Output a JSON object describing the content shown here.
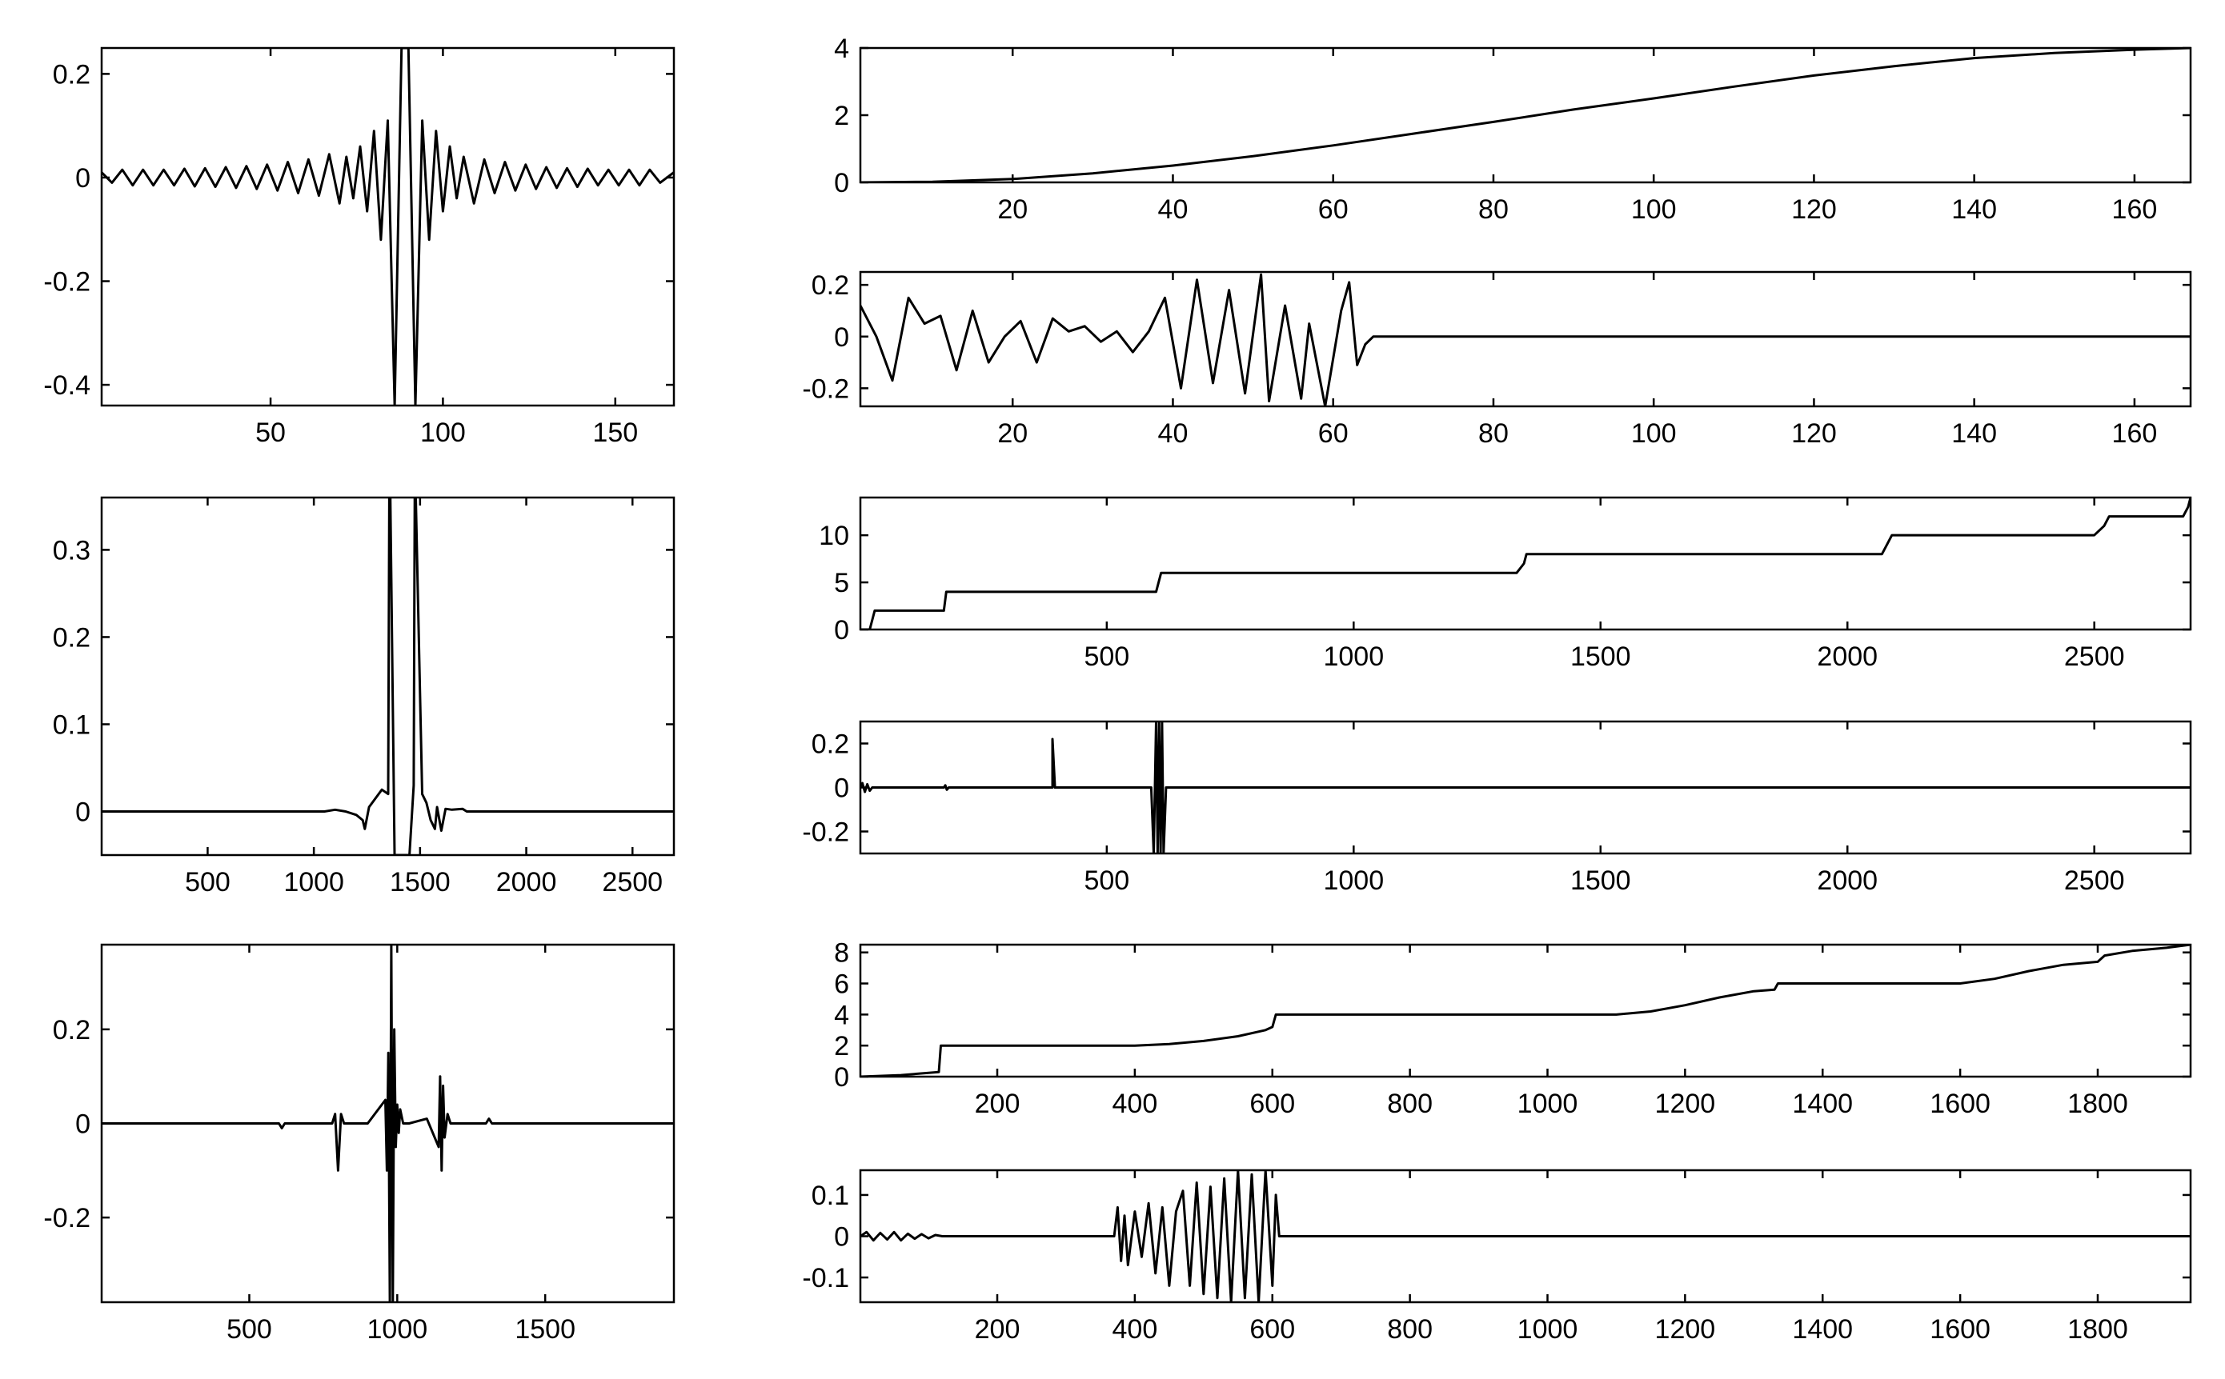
{
  "figure": {
    "background": "#ffffff",
    "line_color": "#000000",
    "panel_count": 9
  },
  "chart_data": [
    {
      "id": "left-1",
      "type": "line",
      "xlim": [
        1,
        167
      ],
      "ylim": [
        -0.44,
        0.25
      ],
      "xticks": [
        50,
        100,
        150
      ],
      "xtick_labels": [
        "50",
        "100",
        "150"
      ],
      "yticks": [
        0.2,
        0,
        -0.2,
        -0.4
      ],
      "ytick_labels": [
        "0.2",
        "0",
        "-0.2",
        "-0.4"
      ],
      "series": [
        {
          "x": [
            1,
            4,
            7,
            10,
            13,
            16,
            19,
            22,
            25,
            28,
            31,
            34,
            37,
            40,
            43,
            46,
            49,
            52,
            55,
            58,
            61,
            64,
            67,
            70,
            72,
            74,
            76,
            78,
            80,
            82,
            84,
            86,
            88,
            90,
            92,
            94,
            96,
            98,
            100,
            102,
            104,
            106,
            109,
            112,
            115,
            118,
            121,
            124,
            127,
            130,
            133,
            136,
            139,
            142,
            145,
            148,
            151,
            154,
            157,
            160,
            163,
            167
          ],
          "y": [
            0.01,
            -0.01,
            0.015,
            -0.015,
            0.015,
            -0.015,
            0.015,
            -0.015,
            0.017,
            -0.017,
            0.018,
            -0.018,
            0.02,
            -0.02,
            0.022,
            -0.022,
            0.025,
            -0.025,
            0.03,
            -0.03,
            0.035,
            -0.035,
            0.045,
            -0.05,
            0.04,
            -0.04,
            0.06,
            -0.065,
            0.09,
            -0.12,
            0.11,
            -0.44,
            0.25,
            0.25,
            -0.44,
            0.11,
            -0.12,
            0.09,
            -0.065,
            0.06,
            -0.04,
            0.04,
            -0.05,
            0.035,
            -0.03,
            0.03,
            -0.025,
            0.025,
            -0.022,
            0.02,
            -0.02,
            0.018,
            -0.018,
            0.017,
            -0.015,
            0.015,
            -0.015,
            0.015,
            -0.015,
            0.015,
            -0.01,
            0.01
          ]
        }
      ]
    },
    {
      "id": "right-1",
      "type": "line",
      "xlim": [
        1,
        167
      ],
      "ylim": [
        0,
        4
      ],
      "xticks": [
        20,
        40,
        60,
        80,
        100,
        120,
        140,
        160
      ],
      "xtick_labels": [
        "20",
        "40",
        "60",
        "80",
        "100",
        "120",
        "140",
        "160"
      ],
      "yticks": [
        4,
        2,
        0
      ],
      "ytick_labels": [
        "4",
        "2",
        "0"
      ],
      "series": [
        {
          "x": [
            1,
            10,
            20,
            30,
            40,
            50,
            60,
            70,
            80,
            90,
            100,
            110,
            120,
            130,
            140,
            150,
            160,
            167
          ],
          "y": [
            0,
            0.02,
            0.1,
            0.27,
            0.5,
            0.78,
            1.1,
            1.45,
            1.8,
            2.17,
            2.5,
            2.85,
            3.18,
            3.46,
            3.7,
            3.85,
            3.95,
            4.0
          ]
        }
      ]
    },
    {
      "id": "right-2",
      "type": "line",
      "xlim": [
        1,
        167
      ],
      "ylim": [
        -0.27,
        0.25
      ],
      "xticks": [
        20,
        40,
        60,
        80,
        100,
        120,
        140,
        160
      ],
      "xtick_labels": [
        "20",
        "40",
        "60",
        "80",
        "100",
        "120",
        "140",
        "160"
      ],
      "yticks": [
        0.2,
        0,
        -0.2
      ],
      "ytick_labels": [
        "0.2",
        "0",
        "-0.2"
      ],
      "series": [
        {
          "x": [
            1,
            3,
            5,
            7,
            9,
            11,
            13,
            15,
            17,
            19,
            21,
            23,
            25,
            27,
            29,
            31,
            33,
            35,
            37,
            39,
            41,
            43,
            45,
            47,
            49,
            51,
            52,
            54,
            56,
            57,
            59,
            61,
            62,
            63,
            64,
            65,
            80,
            100,
            120,
            140,
            160,
            167
          ],
          "y": [
            0.12,
            0.0,
            -0.17,
            0.15,
            0.05,
            0.08,
            -0.13,
            0.1,
            -0.1,
            0.0,
            0.06,
            -0.1,
            0.07,
            0.02,
            0.04,
            -0.02,
            0.02,
            -0.06,
            0.02,
            0.15,
            -0.2,
            0.22,
            -0.18,
            0.18,
            -0.22,
            0.24,
            -0.25,
            0.12,
            -0.24,
            0.05,
            -0.27,
            0.1,
            0.21,
            -0.11,
            -0.03,
            0,
            0,
            0,
            0,
            0,
            0,
            0
          ]
        }
      ]
    },
    {
      "id": "left-2",
      "type": "line",
      "xlim": [
        1,
        2695
      ],
      "ylim": [
        -0.05,
        0.36
      ],
      "xticks": [
        500,
        1000,
        1500,
        2000,
        2500
      ],
      "xtick_labels": [
        "500",
        "1000",
        "1500",
        "2000",
        "2500"
      ],
      "yticks": [
        0.3,
        0.2,
        0.1,
        0
      ],
      "ytick_labels": [
        "0.3",
        "0.2",
        "0.1",
        "0"
      ],
      "series": [
        {
          "x": [
            1,
            1050,
            1100,
            1150,
            1200,
            1230,
            1240,
            1260,
            1290,
            1320,
            1350,
            1355,
            1360,
            1380,
            1400,
            1450,
            1470,
            1475,
            1480,
            1510,
            1530,
            1550,
            1570,
            1580,
            1600,
            1620,
            1650,
            1700,
            1720,
            1800,
            2695
          ],
          "y": [
            0,
            0,
            0.002,
            0,
            -0.004,
            -0.01,
            -0.02,
            0.005,
            0.015,
            0.025,
            0.02,
            0.36,
            0.36,
            -0.05,
            -0.05,
            -0.05,
            0.03,
            0.36,
            0.36,
            0.02,
            0.01,
            -0.01,
            -0.02,
            0.005,
            -0.022,
            0.003,
            0.002,
            0.003,
            0,
            0,
            0
          ]
        }
      ]
    },
    {
      "id": "right-3",
      "type": "line",
      "xlim": [
        1,
        2695
      ],
      "ylim": [
        0,
        14
      ],
      "xticks": [
        500,
        1000,
        1500,
        2000,
        2500
      ],
      "xtick_labels": [
        "500",
        "1000",
        "1500",
        "2000",
        "2500"
      ],
      "yticks": [
        10,
        5,
        0
      ],
      "ytick_labels": [
        "10",
        "5",
        "0"
      ],
      "series": [
        {
          "x": [
            1,
            10,
            20,
            30,
            170,
            175,
            600,
            610,
            1330,
            1345,
            1350,
            2070,
            2080,
            2090,
            2500,
            2520,
            2530,
            2680,
            2690,
            2695
          ],
          "y": [
            0,
            0,
            0,
            2,
            2,
            4,
            4,
            6,
            6,
            7,
            8,
            8,
            9,
            10,
            10,
            11,
            12,
            12,
            13,
            14
          ]
        }
      ]
    },
    {
      "id": "right-4",
      "type": "line",
      "xlim": [
        1,
        2695
      ],
      "ylim": [
        -0.3,
        0.3
      ],
      "xticks": [
        500,
        1000,
        1500,
        2000,
        2500
      ],
      "xtick_labels": [
        "500",
        "1000",
        "1500",
        "2000",
        "2500"
      ],
      "yticks": [
        0.2,
        0,
        -0.2
      ],
      "ytick_labels": [
        "0.2",
        "0",
        "-0.2"
      ],
      "series": [
        {
          "x": [
            1,
            5,
            10,
            15,
            20,
            25,
            170,
            173,
            176,
            180,
            380,
            390,
            390,
            395,
            590,
            595,
            600,
            603,
            606,
            609,
            612,
            615,
            620,
            2695
          ],
          "y": [
            0,
            0.02,
            -0.02,
            0.015,
            -0.015,
            0,
            0,
            0.01,
            -0.01,
            0,
            0,
            0,
            0.22,
            0,
            0,
            -0.3,
            0.3,
            -0.3,
            0.3,
            -0.3,
            0.3,
            -0.3,
            0,
            0
          ]
        }
      ]
    },
    {
      "id": "left-3",
      "type": "line",
      "xlim": [
        1,
        1935
      ],
      "ylim": [
        -0.38,
        0.38
      ],
      "xticks": [
        500,
        1000,
        1500
      ],
      "xtick_labels": [
        "500",
        "1000",
        "1500"
      ],
      "yticks": [
        0.2,
        0,
        -0.2
      ],
      "ytick_labels": [
        "0.2",
        "0",
        "-0.2"
      ],
      "series": [
        {
          "x": [
            1,
            600,
            610,
            620,
            780,
            790,
            800,
            810,
            820,
            900,
            960,
            965,
            970,
            975,
            980,
            985,
            990,
            995,
            1000,
            1005,
            1010,
            1020,
            1040,
            1100,
            1140,
            1145,
            1150,
            1155,
            1160,
            1170,
            1180,
            1300,
            1310,
            1320,
            1935
          ],
          "y": [
            0,
            0,
            -0.01,
            0,
            0,
            0.02,
            -0.1,
            0.02,
            0,
            0,
            0.05,
            -0.1,
            0.15,
            -0.38,
            0.38,
            -0.38,
            0.2,
            -0.05,
            0.04,
            -0.02,
            0.03,
            0,
            0,
            0.01,
            -0.05,
            0.1,
            -0.1,
            0.08,
            -0.03,
            0.02,
            0,
            0,
            0.01,
            0,
            0
          ]
        }
      ]
    },
    {
      "id": "right-5",
      "type": "line",
      "xlim": [
        1,
        1935
      ],
      "ylim": [
        0,
        8.5
      ],
      "xticks": [
        200,
        400,
        600,
        800,
        1000,
        1200,
        1400,
        1600,
        1800
      ],
      "xtick_labels": [
        "200",
        "400",
        "600",
        "800",
        "1000",
        "1200",
        "1400",
        "1600",
        "1800"
      ],
      "yticks": [
        8,
        6,
        4,
        2,
        0
      ],
      "ytick_labels": [
        "8",
        "6",
        "4",
        "2",
        "0"
      ],
      "series": [
        {
          "x": [
            1,
            60,
            115,
            118,
            400,
            450,
            500,
            550,
            590,
            600,
            605,
            1100,
            1150,
            1200,
            1250,
            1300,
            1330,
            1335,
            1600,
            1650,
            1700,
            1750,
            1800,
            1810,
            1850,
            1900,
            1935
          ],
          "y": [
            0,
            0.1,
            0.3,
            2,
            2,
            2.1,
            2.3,
            2.6,
            3,
            3.2,
            4,
            4,
            4.2,
            4.6,
            5.1,
            5.5,
            5.6,
            6,
            6,
            6.3,
            6.8,
            7.2,
            7.4,
            7.8,
            8.1,
            8.3,
            8.5
          ]
        }
      ]
    },
    {
      "id": "right-6",
      "type": "line",
      "xlim": [
        1,
        1935
      ],
      "ylim": [
        -0.16,
        0.16
      ],
      "xticks": [
        200,
        400,
        600,
        800,
        1000,
        1200,
        1400,
        1600,
        1800
      ],
      "xtick_labels": [
        "200",
        "400",
        "600",
        "800",
        "1000",
        "1200",
        "1400",
        "1600",
        "1800"
      ],
      "yticks": [
        0.1,
        0,
        -0.1
      ],
      "ytick_labels": [
        "0.1",
        "0",
        "-0.1"
      ],
      "series": [
        {
          "x": [
            1,
            10,
            20,
            30,
            40,
            50,
            60,
            70,
            80,
            90,
            100,
            110,
            120,
            370,
            375,
            380,
            385,
            390,
            400,
            410,
            420,
            430,
            440,
            450,
            460,
            470,
            480,
            490,
            500,
            510,
            520,
            530,
            540,
            550,
            560,
            570,
            580,
            590,
            600,
            605,
            610,
            1935
          ],
          "y": [
            0,
            0.01,
            -0.01,
            0.008,
            -0.008,
            0.01,
            -0.01,
            0.006,
            -0.006,
            0.005,
            -0.005,
            0.003,
            0,
            0,
            0.07,
            -0.06,
            0.05,
            -0.07,
            0.06,
            -0.05,
            0.08,
            -0.09,
            0.07,
            -0.12,
            0.06,
            0.11,
            -0.12,
            0.13,
            -0.14,
            0.12,
            -0.15,
            0.14,
            -0.16,
            0.16,
            -0.15,
            0.15,
            -0.16,
            0.16,
            -0.12,
            0.1,
            0,
            0
          ]
        }
      ]
    }
  ]
}
